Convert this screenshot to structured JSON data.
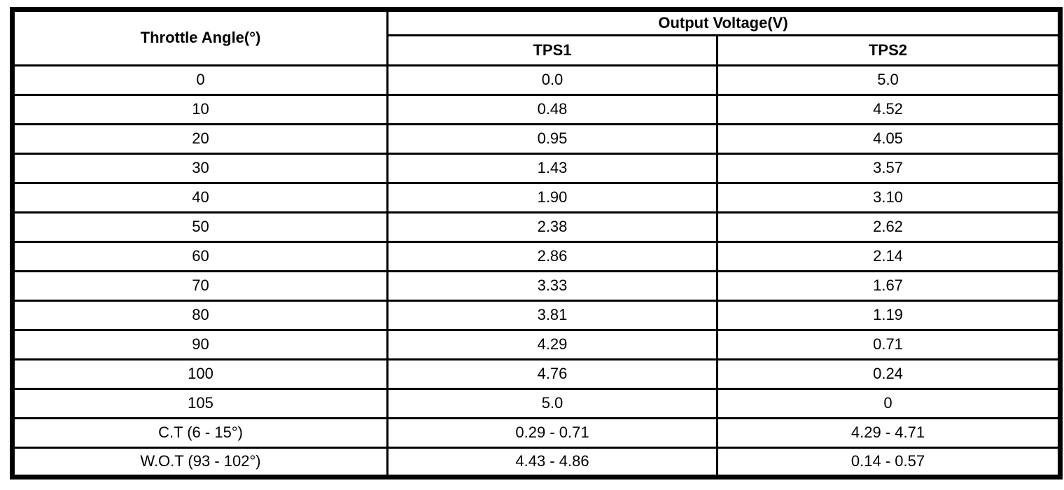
{
  "page": {
    "background_color": "#ffffff",
    "border_color": "#000000",
    "text_color": "#000000"
  },
  "table": {
    "headers": {
      "throttle_angle": "Throttle Angle(°)",
      "output_voltage_group": "Output Voltage(V)",
      "tps1": "TPS1",
      "tps2": "TPS2"
    },
    "rows": [
      {
        "angle": "0",
        "tps1": "0.0",
        "tps2": "5.0"
      },
      {
        "angle": "10",
        "tps1": "0.48",
        "tps2": "4.52"
      },
      {
        "angle": "20",
        "tps1": "0.95",
        "tps2": "4.05"
      },
      {
        "angle": "30",
        "tps1": "1.43",
        "tps2": "3.57"
      },
      {
        "angle": "40",
        "tps1": "1.90",
        "tps2": "3.10"
      },
      {
        "angle": "50",
        "tps1": "2.38",
        "tps2": "2.62"
      },
      {
        "angle": "60",
        "tps1": "2.86",
        "tps2": "2.14"
      },
      {
        "angle": "70",
        "tps1": "3.33",
        "tps2": "1.67"
      },
      {
        "angle": "80",
        "tps1": "3.81",
        "tps2": "1.19"
      },
      {
        "angle": "90",
        "tps1": "4.29",
        "tps2": "0.71"
      },
      {
        "angle": "100",
        "tps1": "4.76",
        "tps2": "0.24"
      },
      {
        "angle": "105",
        "tps1": "5.0",
        "tps2": "0"
      },
      {
        "angle": "C.T (6 - 15°)",
        "tps1": "0.29 - 0.71",
        "tps2": "4.29 - 4.71"
      },
      {
        "angle": "W.O.T (93 - 102°)",
        "tps1": "4.43 - 4.86",
        "tps2": "0.14 - 0.57"
      }
    ]
  }
}
